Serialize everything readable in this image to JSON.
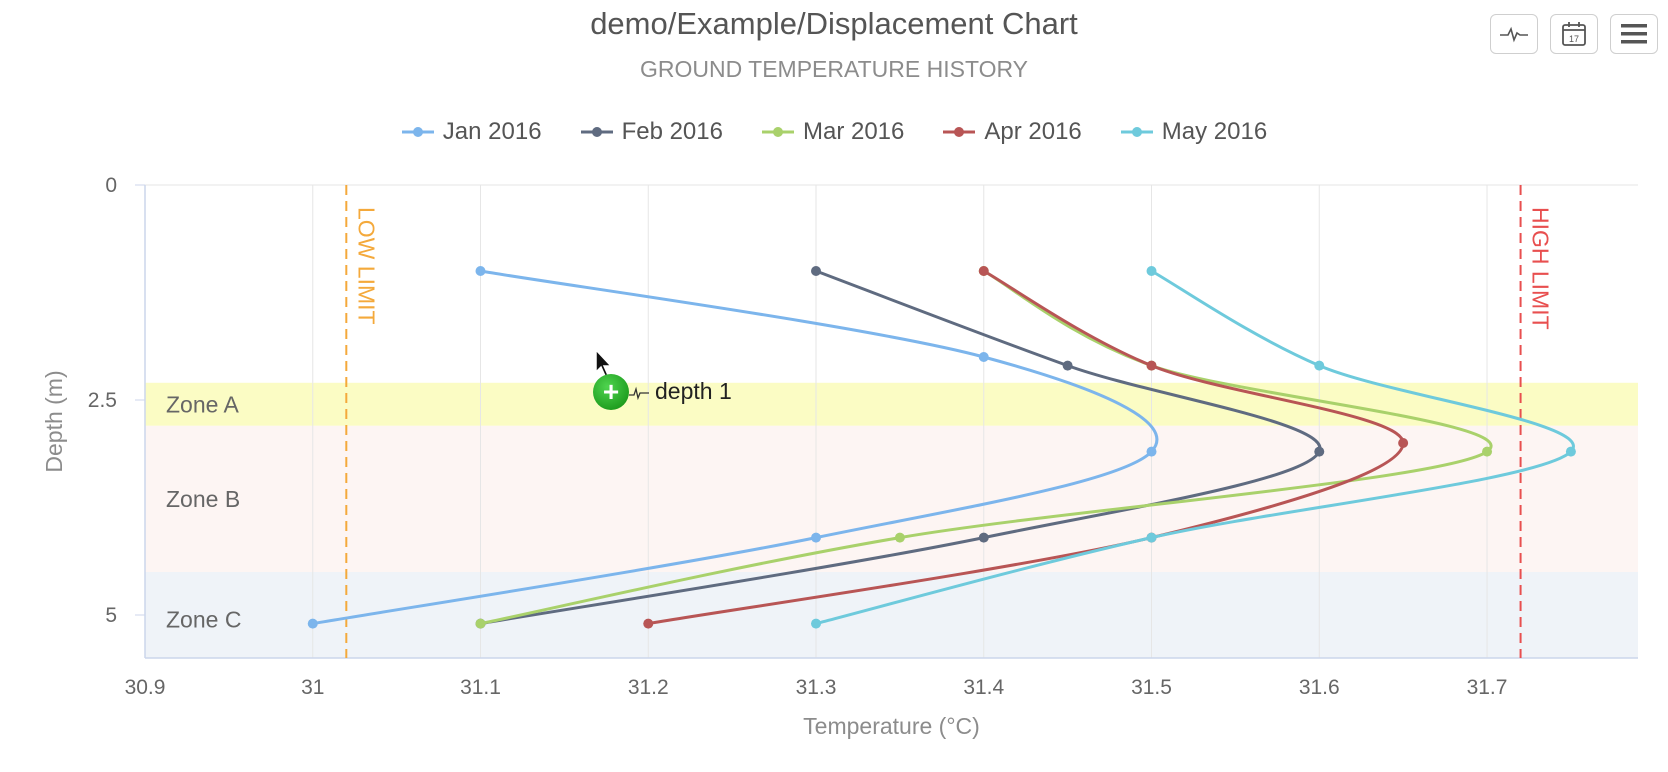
{
  "header": {
    "title": "demo/Example/Displacement Chart",
    "subtitle": "GROUND TEMPERATURE HISTORY"
  },
  "toolbar": {
    "icons": [
      "pulse-icon",
      "calendar-icon",
      "menu-icon"
    ],
    "calendar_day": "17"
  },
  "drag_hint": {
    "label": "depth 1"
  },
  "chart_data": {
    "type": "line",
    "title": "demo/Example/Displacement Chart",
    "subtitle": "GROUND TEMPERATURE HISTORY",
    "xlabel": "Temperature (°C)",
    "ylabel": "Depth (m)",
    "xlim": [
      30.9,
      31.79
    ],
    "ylim": [
      0,
      5.5
    ],
    "y_reversed": true,
    "x_ticks": [
      30.9,
      31,
      31.1,
      31.2,
      31.3,
      31.4,
      31.5,
      31.6,
      31.7
    ],
    "y_ticks": [
      0,
      2.5,
      5
    ],
    "grid": true,
    "legend_position": "top-center",
    "series": [
      {
        "name": "Jan 2016",
        "color": "#7cb5ec",
        "points": [
          [
            31.1,
            1.0
          ],
          [
            31.4,
            2.0
          ],
          [
            31.5,
            3.1
          ],
          [
            31.3,
            4.1
          ],
          [
            31.0,
            5.1
          ]
        ]
      },
      {
        "name": "Feb 2016",
        "color": "#5f6b80",
        "points": [
          [
            31.3,
            1.0
          ],
          [
            31.45,
            2.1
          ],
          [
            31.6,
            3.1
          ],
          [
            31.4,
            4.1
          ],
          [
            31.1,
            5.1
          ]
        ]
      },
      {
        "name": "Mar 2016",
        "color": "#a9d16b",
        "points": [
          [
            31.4,
            1.0
          ],
          [
            31.5,
            2.1
          ],
          [
            31.7,
            3.1
          ],
          [
            31.35,
            4.1
          ],
          [
            31.1,
            5.1
          ]
        ]
      },
      {
        "name": "Apr 2016",
        "color": "#b85555",
        "points": [
          [
            31.4,
            1.0
          ],
          [
            31.5,
            2.1
          ],
          [
            31.65,
            3.0
          ],
          [
            31.5,
            4.1
          ],
          [
            31.2,
            5.1
          ]
        ]
      },
      {
        "name": "May 2016",
        "color": "#6ecadc",
        "points": [
          [
            31.5,
            1.0
          ],
          [
            31.6,
            2.1
          ],
          [
            31.75,
            3.1
          ],
          [
            31.5,
            4.1
          ],
          [
            31.3,
            5.1
          ]
        ]
      }
    ],
    "zones": [
      {
        "label": "Zone A",
        "from": 2.3,
        "to": 2.8,
        "color": "#fbfcc4"
      },
      {
        "label": "Zone B",
        "from": 2.8,
        "to": 4.5,
        "color": "#fdf5f3"
      },
      {
        "label": "Zone C",
        "from": 4.5,
        "to": 5.5,
        "color": "#eff3f8"
      }
    ],
    "plot_lines": [
      {
        "label": "LOW LIMIT",
        "value": 31.02,
        "color": "#f4a93b"
      },
      {
        "label": "HIGH LIMIT",
        "value": 31.72,
        "color": "#e84f4f"
      }
    ]
  }
}
